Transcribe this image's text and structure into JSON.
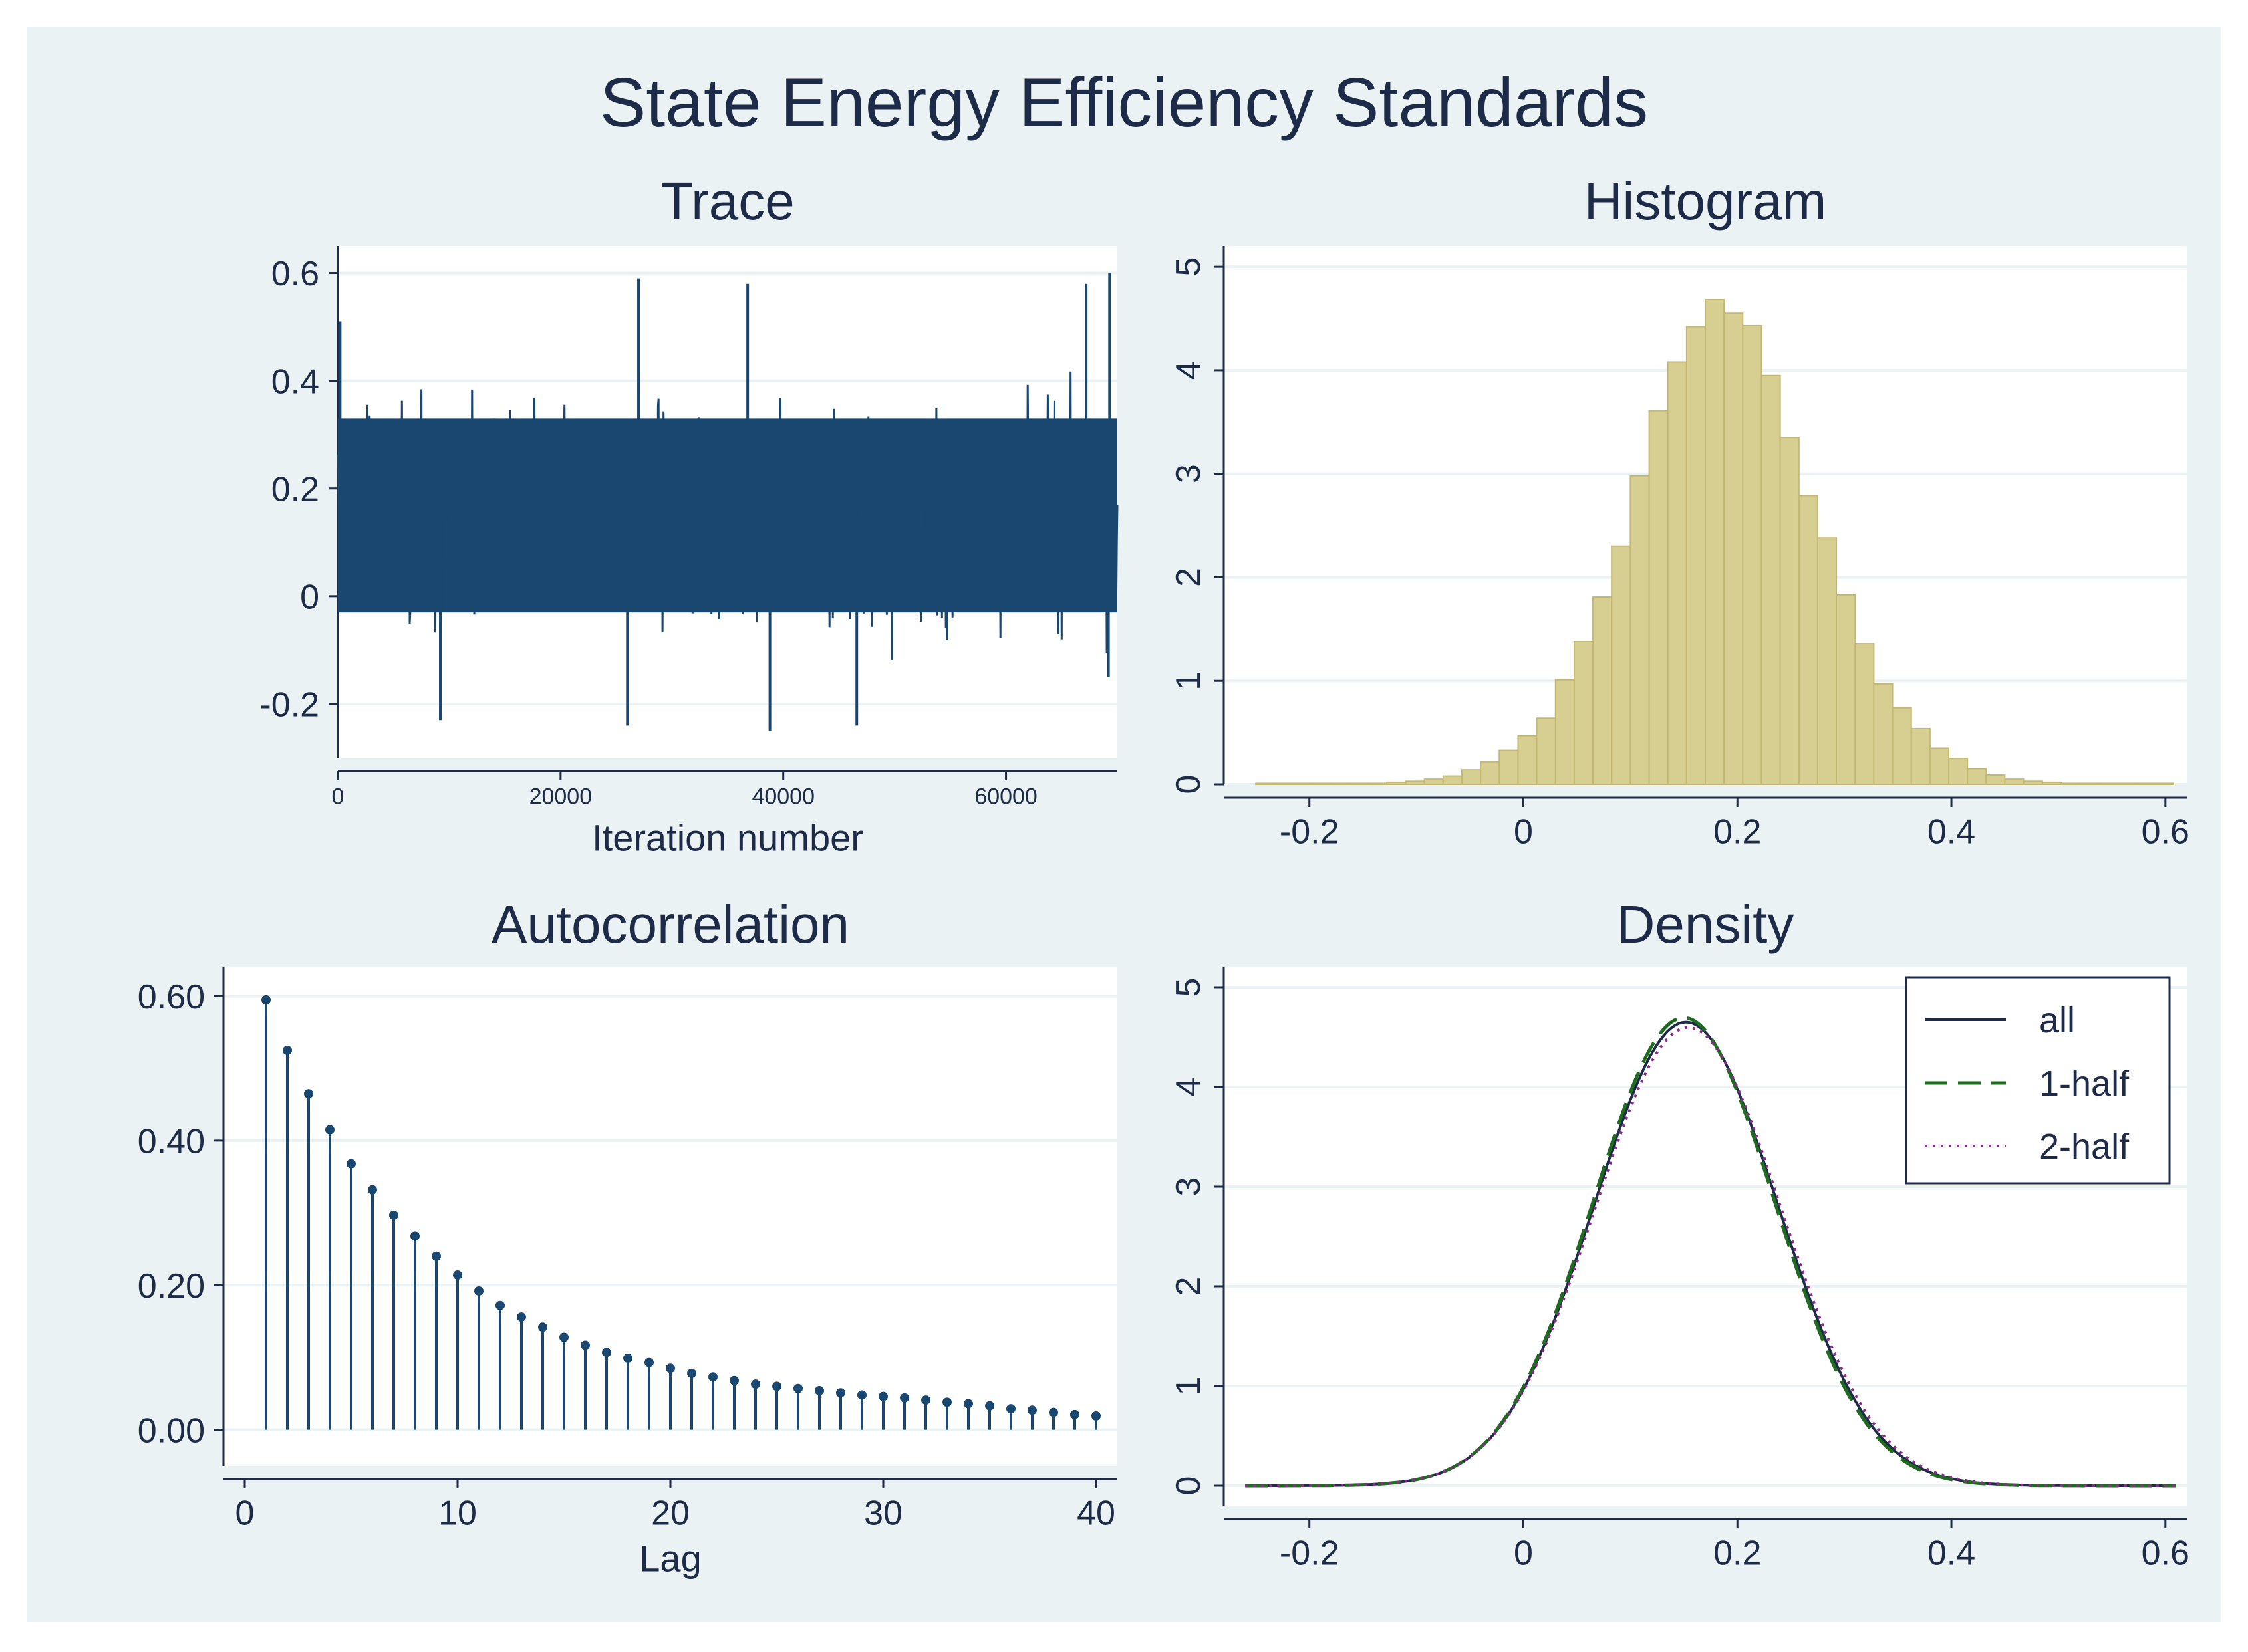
{
  "title": "State Energy Efficiency Standards",
  "colors": {
    "outer_bg": "#eaf2f3",
    "plot_bg": "#ffffff",
    "navy": "#1a476f",
    "text": "#1e2b48",
    "grid": "#eaf2f3",
    "hist_fill": "#d7ce92",
    "hist_stroke": "#c2b874",
    "all": "#1e2b48",
    "half1": "#1f6b1f",
    "half2": "#8a2a8a"
  },
  "chart_data": [
    {
      "panel": "trace",
      "type": "line",
      "title": "Trace",
      "xlabel": "Iteration number",
      "ylabel": "",
      "xlim": [
        0,
        70000
      ],
      "ylim": [
        -0.3,
        0.65
      ],
      "xticks": [
        0,
        20000,
        40000,
        60000
      ],
      "xtick_labels": [
        "0",
        "20000",
        "40000",
        "60000"
      ],
      "yticks": [
        -0.2,
        0,
        0.2,
        0.4,
        0.6
      ],
      "ytick_labels": [
        "-0.2",
        "0",
        "0.2",
        "0.4",
        "0.6"
      ],
      "grid": true,
      "mean": 0.15,
      "band": [
        -0.03,
        0.33
      ],
      "n_iterations": 70000,
      "spikes": [
        [
          200,
          0.51
        ],
        [
          9200,
          -0.23
        ],
        [
          27000,
          0.59
        ],
        [
          26000,
          -0.24
        ],
        [
          36800,
          0.58
        ],
        [
          38800,
          -0.25
        ],
        [
          46600,
          -0.24
        ],
        [
          67200,
          0.58
        ],
        [
          69300,
          0.6
        ],
        [
          69200,
          -0.15
        ]
      ]
    },
    {
      "panel": "histogram",
      "type": "bar",
      "title": "Histogram",
      "xlabel": "",
      "ylabel": "",
      "xlim": [
        -0.28,
        0.62
      ],
      "ylim": [
        0,
        5.2
      ],
      "xticks": [
        -0.2,
        0,
        0.2,
        0.4,
        0.6
      ],
      "xtick_labels": [
        "-0.2",
        "0",
        "0.2",
        "0.4",
        "0.6"
      ],
      "yticks": [
        0,
        1,
        2,
        3,
        4,
        5
      ],
      "ytick_labels": [
        "0",
        "1",
        "2",
        "3",
        "4",
        "5"
      ],
      "grid": true,
      "bin_width": 0.0175,
      "bin_start": -0.25,
      "values": [
        0.01,
        0.01,
        0.01,
        0.01,
        0.01,
        0.01,
        0.01,
        0.02,
        0.03,
        0.05,
        0.08,
        0.14,
        0.22,
        0.33,
        0.47,
        0.64,
        1.01,
        1.38,
        1.81,
        2.3,
        2.98,
        3.61,
        4.08,
        4.42,
        4.68,
        4.55,
        4.43,
        3.95,
        3.35,
        2.79,
        2.38,
        1.83,
        1.36,
        0.97,
        0.74,
        0.54,
        0.35,
        0.25,
        0.15,
        0.09,
        0.05,
        0.03,
        0.02,
        0.01,
        0.01,
        0.01,
        0.01,
        0.01,
        0.01
      ]
    },
    {
      "panel": "autocorrelation",
      "type": "scatter",
      "title": "Autocorrelation",
      "xlabel": "Lag",
      "ylabel": "",
      "xlim": [
        -1,
        41
      ],
      "ylim": [
        -0.05,
        0.64
      ],
      "xticks": [
        0,
        10,
        20,
        30,
        40
      ],
      "xtick_labels": [
        "0",
        "10",
        "20",
        "30",
        "40"
      ],
      "yticks": [
        0,
        0.2,
        0.4,
        0.6
      ],
      "ytick_labels": [
        "0.00",
        "0.20",
        "0.40",
        "0.60"
      ],
      "grid": true,
      "x": [
        1,
        2,
        3,
        4,
        5,
        6,
        7,
        8,
        9,
        10,
        11,
        12,
        13,
        14,
        15,
        16,
        17,
        18,
        19,
        20,
        21,
        22,
        23,
        24,
        25,
        26,
        27,
        28,
        29,
        30,
        31,
        32,
        33,
        34,
        35,
        36,
        37,
        38,
        39,
        40
      ],
      "values": [
        0.595,
        0.525,
        0.465,
        0.415,
        0.368,
        0.332,
        0.297,
        0.268,
        0.24,
        0.214,
        0.192,
        0.172,
        0.156,
        0.142,
        0.128,
        0.117,
        0.107,
        0.099,
        0.093,
        0.085,
        0.078,
        0.073,
        0.068,
        0.063,
        0.06,
        0.057,
        0.054,
        0.051,
        0.048,
        0.046,
        0.044,
        0.041,
        0.038,
        0.036,
        0.033,
        0.029,
        0.027,
        0.024,
        0.021,
        0.019
      ]
    },
    {
      "panel": "density",
      "type": "line",
      "title": "Density",
      "xlabel": "",
      "ylabel": "",
      "xlim": [
        -0.28,
        0.62
      ],
      "ylim": [
        -0.2,
        5.2
      ],
      "xticks": [
        -0.2,
        0,
        0.2,
        0.4,
        0.6
      ],
      "xtick_labels": [
        "-0.2",
        "0",
        "0.2",
        "0.4",
        "0.6"
      ],
      "yticks": [
        0,
        1,
        2,
        3,
        4,
        5
      ],
      "ytick_labels": [
        "0",
        "1",
        "2",
        "3",
        "4",
        "5"
      ],
      "grid": true,
      "legend_position": "top-right",
      "x_range": [
        -0.26,
        0.61
      ],
      "series": [
        {
          "name": "all",
          "mean": 0.152,
          "sd": 0.0858,
          "style": "solid"
        },
        {
          "name": "1-half",
          "mean": 0.15,
          "sd": 0.085,
          "style": "dashed"
        },
        {
          "name": "2-half",
          "mean": 0.154,
          "sd": 0.0868,
          "style": "dotted"
        }
      ]
    }
  ]
}
